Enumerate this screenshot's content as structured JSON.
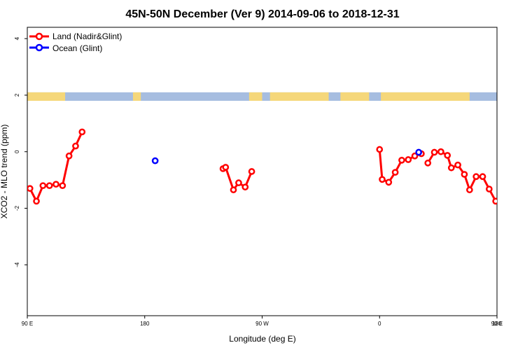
{
  "chart_data": {
    "type": "line",
    "title": "45N-50N December (Ver 9)   2014-09-06 to 2018-12-31",
    "xlabel": "Longitude (deg E)",
    "ylabel": "XCO2 - MLO trend (ppm)",
    "xlim": [
      0,
      360
    ],
    "ylim": [
      -5.8,
      4.4
    ],
    "x_ticks": [
      {
        "pos": 0,
        "label": "90 E"
      },
      {
        "pos": 90,
        "label": "180"
      },
      {
        "pos": 180,
        "label": "90 W"
      },
      {
        "pos": 270,
        "label": "0"
      },
      {
        "pos": 360,
        "label": "90 E"
      }
    ],
    "x_ticks_secondary": [
      {
        "pos": 360,
        "label": "180"
      }
    ],
    "y_ticks": [
      -4,
      -2,
      0,
      2,
      4
    ],
    "legend_position": "top-left",
    "map_band": {
      "y_range": [
        1.8,
        2.1
      ],
      "land_color": "#f5d77a",
      "ocean_color": "#a6bde0"
    },
    "series": [
      {
        "name": "Land (Nadir&Glint)",
        "color": "#ff0000",
        "segments": [
          [
            [
              2,
              -1.3
            ],
            [
              7,
              -1.75
            ],
            [
              12,
              -1.2
            ],
            [
              17,
              -1.2
            ],
            [
              22,
              -1.15
            ],
            [
              27,
              -1.2
            ],
            [
              32,
              -0.15
            ],
            [
              37,
              0.2
            ],
            [
              42,
              0.7
            ]
          ],
          [
            [
              150,
              -0.6
            ],
            [
              152,
              -0.55
            ],
            [
              158,
              -1.35
            ],
            [
              162,
              -1.1
            ],
            [
              167,
              -1.25
            ],
            [
              172,
              -0.7
            ]
          ],
          [
            [
              270,
              0.08
            ],
            [
              272,
              -0.98
            ],
            [
              277,
              -1.08
            ],
            [
              282,
              -0.73
            ],
            [
              287,
              -0.3
            ],
            [
              292,
              -0.28
            ],
            [
              297,
              -0.15
            ],
            [
              302,
              -0.07
            ]
          ],
          [
            [
              307,
              -0.4
            ],
            [
              312,
              -0.02
            ],
            [
              317,
              0.0
            ],
            [
              322,
              -0.13
            ],
            [
              325,
              -0.57
            ],
            [
              330,
              -0.47
            ],
            [
              335,
              -0.8
            ],
            [
              339,
              -1.35
            ],
            [
              344,
              -0.88
            ],
            [
              349,
              -0.88
            ],
            [
              354,
              -1.32
            ],
            [
              359,
              -1.75
            ]
          ],
          [
            [
              364,
              -1.2
            ],
            [
              369,
              -1.2
            ],
            [
              374,
              -1.2
            ],
            [
              379,
              -1.2
            ],
            [
              384,
              -0.15
            ],
            [
              389,
              0.2
            ],
            [
              394,
              0.7
            ]
          ]
        ]
      },
      {
        "name": "Ocean (Glint)",
        "color": "#0000ff",
        "segments": [
          [
            [
              98,
              -0.32
            ]
          ],
          [
            [
              300,
              -0.02
            ]
          ]
        ]
      }
    ]
  }
}
